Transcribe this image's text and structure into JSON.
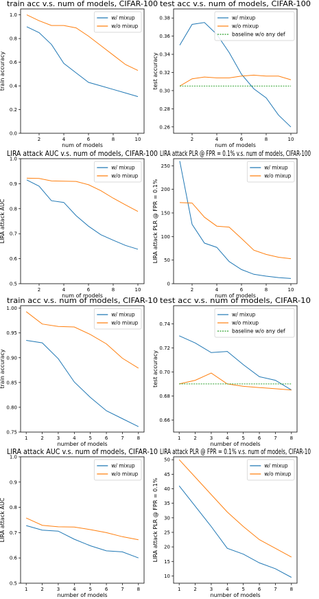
{
  "colors": {
    "mixup": "#1f77b4",
    "nomixup": "#ff7f0e",
    "baseline": "#2ca02c"
  },
  "chart_data": [
    {
      "type": "line",
      "title": "train acc v.s. num of models, CIFAR-100",
      "xlabel": "num of models",
      "ylabel": "train accuracy",
      "xlim": [
        0.5,
        10.5
      ],
      "ylim": [
        0,
        1.05
      ],
      "xticks": [
        2,
        4,
        6,
        8,
        10
      ],
      "yticks": [
        0.0,
        0.2,
        0.4,
        0.6,
        0.8,
        1.0
      ],
      "ydec": 1,
      "legend": "top-right",
      "grid": false,
      "x": [
        1,
        2,
        3,
        4,
        5,
        6,
        7,
        8,
        9,
        10
      ],
      "series": [
        {
          "name": "w/ mixup",
          "style": "mixup",
          "values": [
            0.9,
            0.85,
            0.75,
            0.59,
            0.51,
            0.43,
            0.4,
            0.37,
            0.34,
            0.31
          ]
        },
        {
          "name": "w/o mixup",
          "style": "nomixup",
          "values": [
            1.0,
            0.95,
            0.91,
            0.91,
            0.89,
            0.82,
            0.74,
            0.66,
            0.58,
            0.53
          ]
        }
      ]
    },
    {
      "type": "line",
      "title": "test acc v.s. num of models, CIFAR-100",
      "xlabel": "num of models",
      "ylabel": "test accuracy",
      "xlim": [
        0.5,
        10.5
      ],
      "ylim": [
        0.253,
        0.39
      ],
      "xticks": [
        2,
        4,
        6,
        8,
        10
      ],
      "yticks": [
        0.26,
        0.28,
        0.3,
        0.32,
        0.34,
        0.36,
        0.38
      ],
      "ydec": 2,
      "legend": "top-right",
      "grid": false,
      "x": [
        1,
        2,
        3,
        4,
        5,
        6,
        7,
        8,
        9,
        10
      ],
      "series": [
        {
          "name": "w/ mixup",
          "style": "mixup",
          "values": [
            0.35,
            0.373,
            0.375,
            0.362,
            0.342,
            0.318,
            0.302,
            0.292,
            0.273,
            0.26
          ]
        },
        {
          "name": "w/o mixup",
          "style": "nomixup",
          "values": [
            0.305,
            0.313,
            0.315,
            0.314,
            0.314,
            0.316,
            0.317,
            0.316,
            0.316,
            0.312
          ]
        },
        {
          "name": "baseline w/o any def",
          "style": "baseline",
          "values": [
            0.305,
            0.305,
            0.305,
            0.305,
            0.305,
            0.305,
            0.305,
            0.305,
            0.305,
            0.305
          ]
        }
      ]
    },
    {
      "type": "line",
      "title": "LIRA attack AUC v.s. num of models, CIFAR-100",
      "xlabel": "num of models",
      "ylabel": "LIRA attack AUC",
      "xlim": [
        0.5,
        10.5
      ],
      "ylim": [
        0.5,
        1.0
      ],
      "xticks": [
        2,
        4,
        6,
        8,
        10
      ],
      "yticks": [
        0.5,
        0.6,
        0.7,
        0.8,
        0.9,
        1.0
      ],
      "ydec": 1,
      "legend": "top-right",
      "grid": false,
      "x": [
        1,
        2,
        3,
        4,
        5,
        6,
        7,
        8,
        9,
        10
      ],
      "series": [
        {
          "name": "w/ mixup",
          "style": "mixup",
          "values": [
            0.915,
            0.89,
            0.832,
            0.825,
            0.772,
            0.73,
            0.696,
            0.674,
            0.653,
            0.638
          ]
        },
        {
          "name": "w/o mixup",
          "style": "nomixup",
          "values": [
            0.922,
            0.921,
            0.911,
            0.91,
            0.909,
            0.896,
            0.872,
            0.842,
            0.815,
            0.789
          ]
        }
      ]
    },
    {
      "type": "line",
      "title": "LIRA attack PLR @ FPR = 0.1% v.s. num of models, CIFAR-100",
      "xlabel": "num of models",
      "ylabel": "LIRA attack PLR @ FPR = 0.1%",
      "xlim": [
        0.5,
        10.5
      ],
      "ylim": [
        0,
        265
      ],
      "xticks": [
        2,
        4,
        6,
        8,
        10
      ],
      "yticks": [
        0,
        50,
        100,
        150,
        200,
        250
      ],
      "ydec": 0,
      "legend": "top-right",
      "grid": false,
      "x": [
        1,
        2,
        3,
        4,
        5,
        6,
        7,
        8,
        9,
        10
      ],
      "series": [
        {
          "name": "w/ mixup",
          "style": "mixup",
          "values": [
            260,
            126,
            86,
            77,
            47,
            30,
            20,
            16,
            13,
            11
          ]
        },
        {
          "name": "w/o mixup",
          "style": "nomixup",
          "values": [
            172,
            171,
            141,
            122,
            120,
            96,
            71,
            62,
            56,
            53
          ]
        }
      ]
    },
    {
      "type": "line",
      "title": "train acc v.s. num of models, CIFAR-10",
      "xlabel": "number of models",
      "ylabel": "train accuracy",
      "xlim": [
        0.65,
        8.35
      ],
      "ylim": [
        0.75,
        1.005
      ],
      "xticks": [
        1,
        2,
        3,
        4,
        5,
        6,
        7,
        8
      ],
      "yticks": [
        0.75,
        0.8,
        0.85,
        0.9,
        0.95,
        1.0
      ],
      "ydec": 2,
      "legend": "top-right",
      "grid": false,
      "x": [
        1,
        2,
        3,
        4,
        5,
        6,
        7,
        8
      ],
      "series": [
        {
          "name": "w/ mixup",
          "style": "mixup",
          "values": [
            0.935,
            0.93,
            0.898,
            0.851,
            0.82,
            0.793,
            0.777,
            0.761
          ]
        },
        {
          "name": "w/o mixup",
          "style": "nomixup",
          "values": [
            0.993,
            0.968,
            0.963,
            0.962,
            0.947,
            0.928,
            0.899,
            0.879
          ]
        }
      ]
    },
    {
      "type": "line",
      "title": "test acc v.s. num of models, CIFAR-10",
      "xlabel": "number of models",
      "ylabel": "test accuracy",
      "xlim": [
        0.65,
        8.35
      ],
      "ylim": [
        0.65,
        0.755
      ],
      "xticks": [
        1,
        2,
        3,
        4,
        5,
        6,
        7,
        8
      ],
      "yticks": [
        0.66,
        0.68,
        0.7,
        0.72,
        0.74
      ],
      "ydec": 2,
      "legend": "top-right",
      "grid": false,
      "x": [
        1,
        2,
        3,
        4,
        5,
        6,
        7,
        8
      ],
      "series": [
        {
          "name": "w/ mixup",
          "style": "mixup",
          "values": [
            0.73,
            0.724,
            0.716,
            0.717,
            0.706,
            0.696,
            0.693,
            0.685
          ]
        },
        {
          "name": "w/o mixup",
          "style": "nomixup",
          "values": [
            0.69,
            0.693,
            0.699,
            0.69,
            0.688,
            0.687,
            0.686,
            0.685
          ]
        },
        {
          "name": "baseline w/o any def",
          "style": "baseline",
          "values": [
            0.69,
            0.69,
            0.69,
            0.69,
            0.69,
            0.69,
            0.69,
            0.69
          ]
        }
      ]
    },
    {
      "type": "line",
      "title": "LIRA attack AUC v.s. num of models, CIFAR-10",
      "xlabel": "number of models",
      "ylabel": "LIRA attack AUC",
      "xlim": [
        0.65,
        8.35
      ],
      "ylim": [
        0.5,
        1.0
      ],
      "xticks": [
        1,
        2,
        3,
        4,
        5,
        6,
        7,
        8
      ],
      "yticks": [
        0.5,
        0.6,
        0.7,
        0.8,
        0.9,
        1.0
      ],
      "ydec": 1,
      "legend": "top-right",
      "grid": false,
      "x": [
        1,
        2,
        3,
        4,
        5,
        6,
        7,
        8
      ],
      "series": [
        {
          "name": "w/ mixup",
          "style": "mixup",
          "values": [
            0.728,
            0.71,
            0.706,
            0.674,
            0.648,
            0.628,
            0.624,
            0.6
          ]
        },
        {
          "name": "w/o mixup",
          "style": "nomixup",
          "values": [
            0.758,
            0.729,
            0.723,
            0.722,
            0.712,
            0.7,
            0.684,
            0.672
          ]
        }
      ]
    },
    {
      "type": "line",
      "title": "LIRA attack PLR @ FPR = 0.1% v.s. num of models, CIFAR-10",
      "xlabel": "number of models",
      "ylabel": "LIRA attack PLR @ FPR = 0.1%",
      "xlim": [
        0.65,
        8.35
      ],
      "ylim": [
        7.5,
        51
      ],
      "xticks": [
        1,
        2,
        3,
        4,
        5,
        6,
        7,
        8
      ],
      "yticks": [
        10,
        15,
        20,
        25,
        30,
        35,
        40,
        45,
        50
      ],
      "ydec": 0,
      "legend": "top-right",
      "grid": false,
      "x": [
        1,
        2,
        3,
        4,
        5,
        6,
        7,
        8
      ],
      "series": [
        {
          "name": "w/ mixup",
          "style": "mixup",
          "values": [
            41,
            34,
            27,
            19.5,
            17.5,
            14.5,
            12.5,
            9.5
          ]
        },
        {
          "name": "w/o mixup",
          "style": "nomixup",
          "values": [
            50,
            44,
            38,
            32,
            27,
            22.5,
            19.5,
            16.5
          ]
        }
      ]
    }
  ]
}
